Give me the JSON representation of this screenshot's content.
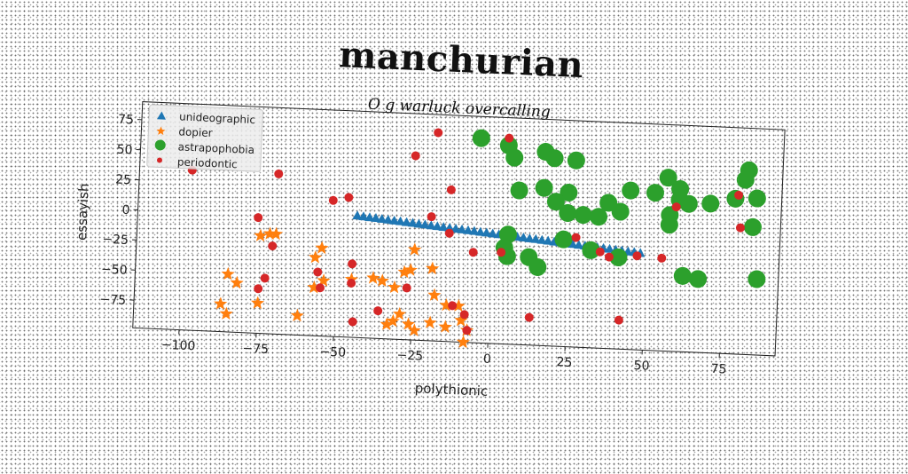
{
  "chart_data": {
    "type": "scatter",
    "title": "manchurian",
    "subtitle": "O g warluck overcalling",
    "xlabel": "polythionic",
    "ylabel": "essayish",
    "xlim": [
      -115,
      93
    ],
    "ylim": [
      -98,
      90
    ],
    "xticks": [
      -100,
      -75,
      -50,
      -25,
      0,
      25,
      50,
      75
    ],
    "xtick_labels": [
      "−100",
      "−75",
      "−50",
      "−25",
      "0",
      "25",
      "50",
      "75"
    ],
    "yticks": [
      -75,
      -50,
      -25,
      0,
      25,
      50,
      75
    ],
    "ytick_labels": [
      "−75",
      "−50",
      "−25",
      "0",
      "25",
      "50",
      "75"
    ],
    "grid": false,
    "legend_position": "top-left",
    "series": [
      {
        "name": "unideographic",
        "marker": "triangle",
        "color": "#1f77b4",
        "points": [
          [
            -44,
            3
          ],
          [
            -42,
            2.5
          ],
          [
            -40,
            2
          ],
          [
            -38,
            1.6
          ],
          [
            -36,
            1.1
          ],
          [
            -34,
            0.7
          ],
          [
            -32,
            0.2
          ],
          [
            -30,
            -0.2
          ],
          [
            -28,
            -0.7
          ],
          [
            -26,
            -1.1
          ],
          [
            -24,
            -1.6
          ],
          [
            -22,
            -2
          ],
          [
            -20,
            -2.5
          ],
          [
            -18,
            -2.9
          ],
          [
            -16,
            -3.4
          ],
          [
            -14,
            -3.8
          ],
          [
            -12,
            -4.3
          ],
          [
            -10,
            -4.7
          ],
          [
            -8,
            -5.2
          ],
          [
            -6,
            -5.6
          ],
          [
            -4,
            -6.1
          ],
          [
            -2,
            -6.5
          ],
          [
            0,
            -7
          ],
          [
            2,
            -7.4
          ],
          [
            4,
            -7.9
          ],
          [
            6,
            -8.3
          ],
          [
            8,
            -8.8
          ],
          [
            10,
            -9.2
          ],
          [
            12,
            -9.7
          ],
          [
            14,
            -10.1
          ],
          [
            16,
            -10.6
          ],
          [
            18,
            -11
          ],
          [
            20,
            -11.5
          ],
          [
            22,
            -11.9
          ],
          [
            24,
            -12.4
          ],
          [
            26,
            -12.8
          ],
          [
            28,
            -13.3
          ],
          [
            30,
            -13.7
          ],
          [
            32,
            -14.2
          ],
          [
            34,
            -14.6
          ],
          [
            36,
            -15.1
          ],
          [
            38,
            -15.5
          ],
          [
            40,
            -16
          ],
          [
            42,
            -16.4
          ],
          [
            44,
            -16.9
          ],
          [
            46,
            -17.3
          ],
          [
            48,
            -17.8
          ]
        ]
      },
      {
        "name": "dopier",
        "marker": "star",
        "color": "#ff7f0e",
        "points": [
          [
            -75,
            -17
          ],
          [
            -72,
            -15
          ],
          [
            -70,
            -15
          ],
          [
            -55,
            -25
          ],
          [
            -57,
            -33
          ],
          [
            -85,
            -50
          ],
          [
            -82,
            -57
          ],
          [
            -87,
            -75
          ],
          [
            -85,
            -83
          ],
          [
            -75,
            -73
          ],
          [
            -62,
            -82
          ],
          [
            -57,
            -58
          ],
          [
            -54,
            -52
          ],
          [
            -45,
            -50
          ],
          [
            -38,
            -48
          ],
          [
            -35,
            -50
          ],
          [
            -31,
            -55
          ],
          [
            -28,
            -42
          ],
          [
            -26,
            -40
          ],
          [
            -25,
            -23
          ],
          [
            -19,
            -38
          ],
          [
            -18,
            -60
          ],
          [
            -14,
            -68
          ],
          [
            -10,
            -68
          ],
          [
            -9,
            -80
          ],
          [
            -14,
            -86
          ],
          [
            -19,
            -83
          ],
          [
            -24,
            -90
          ],
          [
            -29,
            -77
          ],
          [
            -31,
            -83
          ],
          [
            -33,
            -86
          ],
          [
            -26,
            -85
          ],
          [
            -7,
            -88
          ],
          [
            -8,
            -98
          ]
        ]
      },
      {
        "name": "astrapophobia",
        "marker": "circle",
        "color": "#2ca02c",
        "points": [
          [
            -5,
            72
          ],
          [
            4,
            67
          ],
          [
            6,
            57
          ],
          [
            16,
            63
          ],
          [
            19,
            58
          ],
          [
            26,
            57
          ],
          [
            8,
            30
          ],
          [
            16,
            33
          ],
          [
            24,
            30
          ],
          [
            20,
            22
          ],
          [
            24,
            13
          ],
          [
            29,
            12
          ],
          [
            34,
            11
          ],
          [
            37,
            23
          ],
          [
            41,
            16
          ],
          [
            44,
            34
          ],
          [
            52,
            33
          ],
          [
            56,
            46
          ],
          [
            60,
            37
          ],
          [
            60,
            28
          ],
          [
            63,
            25
          ],
          [
            57,
            15
          ],
          [
            57,
            7
          ],
          [
            70,
            26
          ],
          [
            78,
            31
          ],
          [
            81,
            47
          ],
          [
            82,
            55
          ],
          [
            85,
            32
          ],
          [
            84,
            8
          ],
          [
            86,
            -35
          ],
          [
            62,
            -35
          ],
          [
            67,
            -37
          ],
          [
            41,
            -22
          ],
          [
            32,
            -17
          ],
          [
            23,
            -9
          ],
          [
            5,
            -7
          ],
          [
            4,
            -18
          ],
          [
            5,
            -25
          ],
          [
            12,
            -25
          ],
          [
            15,
            -33
          ]
        ]
      },
      {
        "name": "periodontic",
        "marker": "circle-small",
        "color": "#d62728",
        "points": [
          [
            -98,
            35
          ],
          [
            -70,
            35
          ],
          [
            -76,
            -2
          ],
          [
            -71,
            -25
          ],
          [
            -73,
            -52
          ],
          [
            -75,
            -61
          ],
          [
            -55,
            -58
          ],
          [
            -56,
            -45
          ],
          [
            -52,
            15
          ],
          [
            -47,
            18
          ],
          [
            -45,
            -37
          ],
          [
            -45,
            -53
          ],
          [
            -44,
            -85
          ],
          [
            -36,
            -75
          ],
          [
            -27,
            -55
          ],
          [
            -26,
            55
          ],
          [
            -19,
            75
          ],
          [
            -20,
            5
          ],
          [
            -14,
            -8
          ],
          [
            -14,
            28
          ],
          [
            -12,
            -68
          ],
          [
            -8,
            -75
          ],
          [
            -6,
            -23
          ],
          [
            -7,
            -88
          ],
          [
            4,
            73
          ],
          [
            3,
            -22
          ],
          [
            13,
            -75
          ],
          [
            27,
            -7
          ],
          [
            35,
            -18
          ],
          [
            38,
            -22
          ],
          [
            47,
            -20
          ],
          [
            55,
            -21
          ],
          [
            59,
            22
          ],
          [
            79,
            34
          ],
          [
            80,
            7
          ],
          [
            42,
            -74
          ]
        ]
      }
    ]
  }
}
